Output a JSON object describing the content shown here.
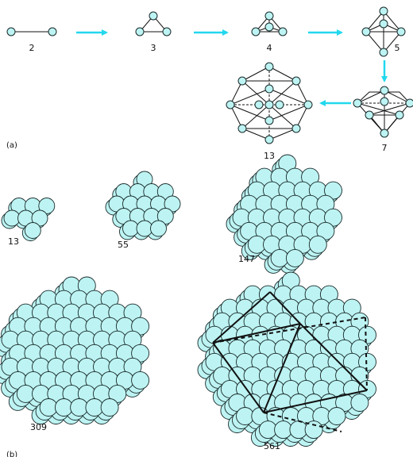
{
  "colors": {
    "sphere_fill": "#bdf3f3",
    "sphere_stroke": "#1a2a2a",
    "arrow": "#22d8ee",
    "edge": "#111111",
    "background": "#ffffff"
  },
  "panel_a": {
    "label": "(a)",
    "steps": [
      {
        "label": "2"
      },
      {
        "label": "3"
      },
      {
        "label": "4"
      },
      {
        "label": "5"
      },
      {
        "label": "7"
      },
      {
        "label": "13"
      }
    ]
  },
  "panel_b": {
    "label": "(b)",
    "clusters": [
      {
        "label": "13"
      },
      {
        "label": "55"
      },
      {
        "label": "147"
      },
      {
        "label": "309"
      },
      {
        "label": "561"
      }
    ]
  },
  "icons": {
    "atom": "circle",
    "growth_arrow": "arrow"
  }
}
